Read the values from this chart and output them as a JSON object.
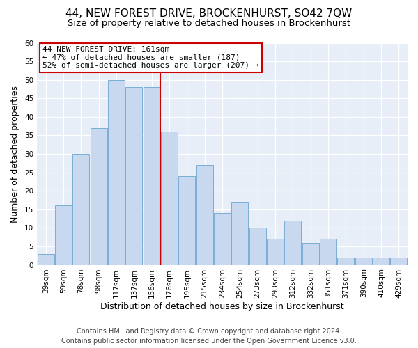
{
  "title": "44, NEW FOREST DRIVE, BROCKENHURST, SO42 7QW",
  "subtitle": "Size of property relative to detached houses in Brockenhurst",
  "xlabel": "Distribution of detached houses by size in Brockenhurst",
  "ylabel": "Number of detached properties",
  "bar_labels": [
    "39sqm",
    "59sqm",
    "78sqm",
    "98sqm",
    "117sqm",
    "137sqm",
    "156sqm",
    "176sqm",
    "195sqm",
    "215sqm",
    "234sqm",
    "254sqm",
    "273sqm",
    "293sqm",
    "312sqm",
    "332sqm",
    "351sqm",
    "371sqm",
    "390sqm",
    "410sqm",
    "429sqm"
  ],
  "bar_values": [
    3,
    16,
    30,
    37,
    50,
    48,
    48,
    36,
    24,
    27,
    14,
    17,
    10,
    7,
    12,
    6,
    7,
    2,
    2,
    2,
    2
  ],
  "bar_color": "#c8d8ee",
  "bar_edge_color": "#7aaed6",
  "ylim": [
    0,
    60
  ],
  "yticks": [
    0,
    5,
    10,
    15,
    20,
    25,
    30,
    35,
    40,
    45,
    50,
    55,
    60
  ],
  "vline_x_index": 6,
  "vline_color": "#cc0000",
  "annotation_title": "44 NEW FOREST DRIVE: 161sqm",
  "annotation_line1": "← 47% of detached houses are smaller (187)",
  "annotation_line2": "52% of semi-detached houses are larger (207) →",
  "annotation_box_color": "#cc0000",
  "footer_line1": "Contains HM Land Registry data © Crown copyright and database right 2024.",
  "footer_line2": "Contains public sector information licensed under the Open Government Licence v3.0.",
  "fig_background_color": "#ffffff",
  "plot_background_color": "#e8eef8",
  "grid_color": "#ffffff",
  "title_fontsize": 11,
  "subtitle_fontsize": 9.5,
  "xlabel_fontsize": 9,
  "ylabel_fontsize": 9,
  "tick_fontsize": 7.5,
  "footer_fontsize": 7
}
